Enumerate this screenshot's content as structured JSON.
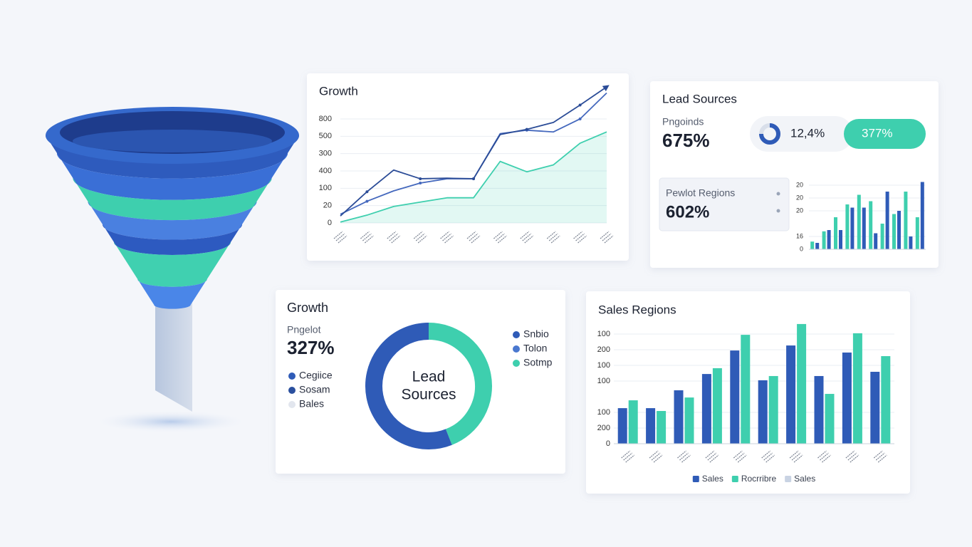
{
  "chart_data": [
    {
      "type": "line",
      "title": "Growth",
      "categories": [
        null,
        null,
        null,
        null,
        null,
        null,
        null,
        null,
        null,
        null,
        null
      ],
      "ylim": [
        0,
        800
      ],
      "yticks": [
        0,
        {
          "value": 100,
          "label": "20"
        },
        {
          "value": 200,
          "label": "100"
        },
        {
          "value": 300,
          "label": "400"
        },
        {
          "value": 400,
          "label": "300"
        },
        500,
        {
          "value": 600,
          "label": "800"
        }
      ],
      "grid": true,
      "series": [
        {
          "color": "#2b4c97",
          "values": [
            40,
            180,
            305,
            255,
            258,
            255,
            510,
            540,
            580,
            680,
            785
          ],
          "arrow": true
        },
        {
          "color": "#4468bd",
          "values": [
            50,
            125,
            185,
            230,
            255,
            255,
            515,
            535,
            525,
            600,
            750
          ]
        },
        {
          "color": "#3ecfae",
          "values": [
            5,
            45,
            95,
            120,
            145,
            145,
            355,
            295,
            335,
            460,
            525
          ],
          "area": true
        }
      ]
    },
    {
      "type": "bar",
      "title": "Lead Sources",
      "stats": [
        {
          "label": "Pngoinds",
          "value": "675%"
        },
        {
          "label": "Pewlot Regions",
          "value": "602%"
        }
      ],
      "pill": [
        "12,4%",
        "377%"
      ],
      "categories": [
        null,
        null,
        null,
        null,
        null,
        null,
        null,
        null,
        null,
        null
      ],
      "ylim": [
        0,
        110
      ],
      "yticks": [
        0,
        {
          "value": 20,
          "label": "16"
        },
        {
          "value": 60,
          "label": "20"
        },
        {
          "value": 80,
          "label": "20"
        },
        {
          "value": 100,
          "label": "20"
        }
      ],
      "grid": true,
      "series": [
        {
          "color": "#3ecfae",
          "values": [
            12,
            28,
            50,
            70,
            85,
            75,
            40,
            55,
            90,
            50
          ]
        },
        {
          "color": "#2f5bb7",
          "values": [
            10,
            30,
            30,
            65,
            65,
            25,
            90,
            60,
            20,
            105
          ]
        }
      ]
    },
    {
      "type": "pie",
      "donut": true,
      "title": "Growth",
      "stats": [
        {
          "label": "Pngelot",
          "value": "327%"
        }
      ],
      "center_label": [
        "Lead",
        "Sources"
      ],
      "categories": [
        null,
        null
      ],
      "values": [
        44,
        56
      ],
      "colors": [
        "#3ecfae",
        "#2f5bb7"
      ],
      "legends": [
        [
          {
            "name": "Cegiice",
            "color": "#2f5bb7"
          },
          {
            "name": "Sosam",
            "color": "#2a4f9e"
          },
          {
            "name": "Bales",
            "color": "#e2e6ee"
          }
        ],
        [
          {
            "name": "Snbio",
            "color": "#2f5bb7"
          },
          {
            "name": "Tolon",
            "color": "#4a78cf"
          },
          {
            "name": "Sotmp",
            "color": "#3ecfae"
          }
        ]
      ]
    },
    {
      "type": "bar",
      "title": "Sales Regions",
      "categories": [
        null,
        null,
        null,
        null,
        null,
        null,
        null,
        null,
        null,
        null
      ],
      "ylim": [
        0,
        780
      ],
      "yticks": [
        0,
        {
          "value": 100,
          "label": "200"
        },
        {
          "value": 200,
          "label": "100"
        },
        {
          "value": 400,
          "label": "100"
        },
        {
          "value": 500,
          "label": "100"
        },
        {
          "value": 600,
          "label": "200"
        },
        {
          "value": 700,
          "label": "100"
        }
      ],
      "grid": true,
      "legend": "bottom",
      "series": [
        {
          "name": "Sales",
          "color": "#2f5bb7",
          "values": [
            227,
            227,
            341,
            445,
            595,
            405,
            627,
            432,
            582,
            459
          ]
        },
        {
          "name": "Rocrribre",
          "color": "#3ecfae",
          "values": [
            277,
            209,
            295,
            482,
            695,
            432,
            764,
            318,
            705,
            559
          ]
        },
        {
          "name": "Sales",
          "color": "#c9d3e3",
          "values": [
            null,
            null,
            null,
            null,
            null,
            null,
            null,
            null,
            null,
            null
          ]
        }
      ]
    }
  ]
}
